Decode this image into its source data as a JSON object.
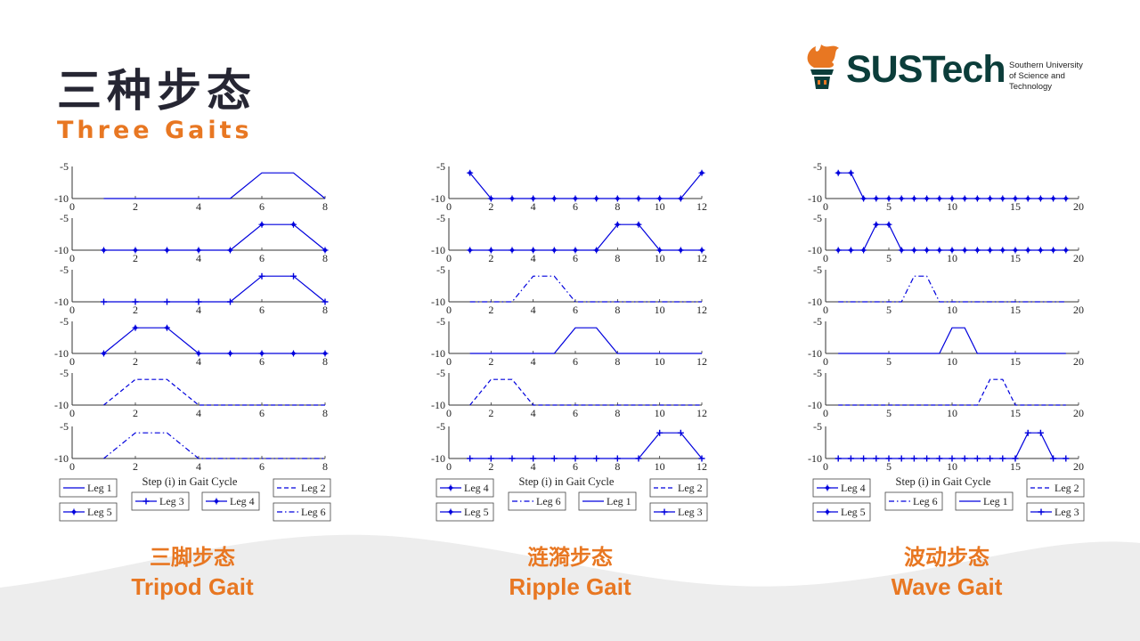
{
  "title_cn": "三种步态",
  "title_en": "Three Gaits",
  "logo": {
    "word": "SUSTech",
    "subtitle": [
      "Southern University",
      "of Science and",
      "Technology"
    ],
    "accent": "#e87722",
    "dark": "#0b3d3a",
    "icon": "torch-logo-icon"
  },
  "colors": {
    "line": "#0000dd",
    "accent": "#e87722",
    "title": "#262633",
    "wave": "#ededed"
  },
  "captions": [
    {
      "cn": "三脚步态",
      "en": "Tripod Gait"
    },
    {
      "cn": "涟漪步态",
      "en": "Ripple Gait"
    },
    {
      "cn": "波动步态",
      "en": "Wave Gait"
    }
  ],
  "chart_data": [
    {
      "type": "line",
      "title": "",
      "xlabel": "Step (i) in Gait Cycle",
      "ylabel": "",
      "xlim": [
        0,
        8
      ],
      "ylim": [
        -10,
        -5
      ],
      "xticks": [
        "0",
        "2",
        "4",
        "6",
        "8"
      ],
      "yticks": [
        "-5",
        "-10"
      ],
      "series": [
        {
          "name": "Leg 1",
          "style": "solid",
          "marker": "none",
          "x": [
            1,
            2,
            3,
            4,
            5,
            6,
            7,
            8
          ],
          "values": [
            -10,
            -10,
            -10,
            -10,
            -10,
            -6,
            -6,
            -10
          ]
        },
        {
          "name": "Leg 4",
          "style": "solid",
          "marker": "dot",
          "x": [
            1,
            2,
            3,
            4,
            5,
            6,
            7,
            8
          ],
          "values": [
            -10,
            -10,
            -10,
            -10,
            -10,
            -6,
            -6,
            -10
          ]
        },
        {
          "name": "Leg 3",
          "style": "solid",
          "marker": "plus",
          "x": [
            1,
            2,
            3,
            4,
            5,
            6,
            7,
            8
          ],
          "values": [
            -10,
            -10,
            -10,
            -10,
            -10,
            -6,
            -6,
            -10
          ]
        },
        {
          "name": "Leg 5",
          "style": "solid",
          "marker": "dot",
          "x": [
            1,
            2,
            3,
            4,
            5,
            6,
            7,
            8
          ],
          "values": [
            -10,
            -6,
            -6,
            -10,
            -10,
            -10,
            -10,
            -10
          ]
        },
        {
          "name": "Leg 2",
          "style": "dash",
          "marker": "none",
          "x": [
            1,
            2,
            3,
            4,
            5,
            6,
            7,
            8
          ],
          "values": [
            -10,
            -6,
            -6,
            -10,
            -10,
            -10,
            -10,
            -10
          ]
        },
        {
          "name": "Leg 6",
          "style": "dashdot",
          "marker": "none",
          "x": [
            1,
            2,
            3,
            4,
            5,
            6,
            7,
            8
          ],
          "values": [
            -10,
            -6,
            -6,
            -10,
            -10,
            -10,
            -10,
            -10
          ]
        }
      ],
      "legend": [
        [
          "Leg 1",
          "",
          "",
          "Leg 2"
        ],
        [
          "Leg 5",
          "Leg 3",
          "Leg 4",
          "Leg 6"
        ]
      ]
    },
    {
      "type": "line",
      "title": "",
      "xlabel": "Step (i) in Gait Cycle",
      "ylabel": "",
      "xlim": [
        0,
        12
      ],
      "ylim": [
        -10,
        -5
      ],
      "xticks": [
        "0",
        "2",
        "4",
        "6",
        "8",
        "10",
        "12"
      ],
      "yticks": [
        "-5",
        "-10"
      ],
      "series": [
        {
          "name": "Leg 4",
          "style": "solid",
          "marker": "dot",
          "x": [
            1,
            2,
            3,
            4,
            5,
            6,
            7,
            8,
            9,
            10,
            11,
            12
          ],
          "values": [
            -6,
            -10,
            -10,
            -10,
            -10,
            -10,
            -10,
            -10,
            -10,
            -10,
            -10,
            -6
          ]
        },
        {
          "name": "Leg 5",
          "style": "solid",
          "marker": "dot",
          "x": [
            1,
            2,
            3,
            4,
            5,
            6,
            7,
            8,
            9,
            10,
            11,
            12
          ],
          "values": [
            -10,
            -10,
            -10,
            -10,
            -10,
            -10,
            -10,
            -6,
            -6,
            -10,
            -10,
            -10
          ]
        },
        {
          "name": "Leg 6",
          "style": "dashdot",
          "marker": "none",
          "x": [
            1,
            2,
            3,
            4,
            5,
            6,
            7,
            8,
            9,
            10,
            11,
            12
          ],
          "values": [
            -10,
            -10,
            -10,
            -6,
            -6,
            -10,
            -10,
            -10,
            -10,
            -10,
            -10,
            -10
          ]
        },
        {
          "name": "Leg 1",
          "style": "solid",
          "marker": "none",
          "x": [
            1,
            2,
            3,
            4,
            5,
            6,
            7,
            8,
            9,
            10,
            11,
            12
          ],
          "values": [
            -10,
            -10,
            -10,
            -10,
            -10,
            -6,
            -6,
            -10,
            -10,
            -10,
            -10,
            -10
          ]
        },
        {
          "name": "Leg 2",
          "style": "dash",
          "marker": "none",
          "x": [
            1,
            2,
            3,
            4,
            5,
            6,
            7,
            8,
            9,
            10,
            11,
            12
          ],
          "values": [
            -10,
            -6,
            -6,
            -10,
            -10,
            -10,
            -10,
            -10,
            -10,
            -10,
            -10,
            -10
          ]
        },
        {
          "name": "Leg 3",
          "style": "solid",
          "marker": "plus",
          "x": [
            1,
            2,
            3,
            4,
            5,
            6,
            7,
            8,
            9,
            10,
            11,
            12
          ],
          "values": [
            -10,
            -10,
            -10,
            -10,
            -10,
            -10,
            -10,
            -10,
            -10,
            -6,
            -6,
            -10
          ]
        }
      ],
      "legend": [
        [
          "Leg 4",
          "",
          "",
          "Leg 2"
        ],
        [
          "Leg 5",
          "Leg 6",
          "Leg 1",
          "Leg 3"
        ]
      ]
    },
    {
      "type": "line",
      "title": "",
      "xlabel": "Step (i) in Gait Cycle",
      "ylabel": "",
      "xlim": [
        0,
        20
      ],
      "ylim": [
        -10,
        -5
      ],
      "xticks": [
        "0",
        "5",
        "10",
        "15",
        "20"
      ],
      "yticks": [
        "-5",
        "-10"
      ],
      "series": [
        {
          "name": "Leg 4",
          "style": "solid",
          "marker": "dot",
          "x": [
            1,
            2,
            3,
            4,
            5,
            6,
            7,
            8,
            9,
            10,
            11,
            12,
            13,
            14,
            15,
            16,
            17,
            18,
            19
          ],
          "values": [
            -6,
            -6,
            -10,
            -10,
            -10,
            -10,
            -10,
            -10,
            -10,
            -10,
            -10,
            -10,
            -10,
            -10,
            -10,
            -10,
            -10,
            -10,
            -10
          ]
        },
        {
          "name": "Leg 5",
          "style": "solid",
          "marker": "dot",
          "x": [
            1,
            2,
            3,
            4,
            5,
            6,
            7,
            8,
            9,
            10,
            11,
            12,
            13,
            14,
            15,
            16,
            17,
            18,
            19
          ],
          "values": [
            -10,
            -10,
            -10,
            -6,
            -6,
            -10,
            -10,
            -10,
            -10,
            -10,
            -10,
            -10,
            -10,
            -10,
            -10,
            -10,
            -10,
            -10,
            -10
          ]
        },
        {
          "name": "Leg 6",
          "style": "dashdot",
          "marker": "none",
          "x": [
            1,
            2,
            3,
            4,
            5,
            6,
            7,
            8,
            9,
            10,
            11,
            12,
            13,
            14,
            15,
            16,
            17,
            18,
            19
          ],
          "values": [
            -10,
            -10,
            -10,
            -10,
            -10,
            -10,
            -6,
            -6,
            -10,
            -10,
            -10,
            -10,
            -10,
            -10,
            -10,
            -10,
            -10,
            -10,
            -10
          ]
        },
        {
          "name": "Leg 1",
          "style": "solid",
          "marker": "none",
          "x": [
            1,
            2,
            3,
            4,
            5,
            6,
            7,
            8,
            9,
            10,
            11,
            12,
            13,
            14,
            15,
            16,
            17,
            18,
            19
          ],
          "values": [
            -10,
            -10,
            -10,
            -10,
            -10,
            -10,
            -10,
            -10,
            -10,
            -6,
            -6,
            -10,
            -10,
            -10,
            -10,
            -10,
            -10,
            -10,
            -10
          ]
        },
        {
          "name": "Leg 2",
          "style": "dash",
          "marker": "none",
          "x": [
            1,
            2,
            3,
            4,
            5,
            6,
            7,
            8,
            9,
            10,
            11,
            12,
            13,
            14,
            15,
            16,
            17,
            18,
            19
          ],
          "values": [
            -10,
            -10,
            -10,
            -10,
            -10,
            -10,
            -10,
            -10,
            -10,
            -10,
            -10,
            -10,
            -6,
            -6,
            -10,
            -10,
            -10,
            -10,
            -10
          ]
        },
        {
          "name": "Leg 3",
          "style": "solid",
          "marker": "plus",
          "x": [
            1,
            2,
            3,
            4,
            5,
            6,
            7,
            8,
            9,
            10,
            11,
            12,
            13,
            14,
            15,
            16,
            17,
            18,
            19
          ],
          "values": [
            -10,
            -10,
            -10,
            -10,
            -10,
            -10,
            -10,
            -10,
            -10,
            -10,
            -10,
            -10,
            -10,
            -10,
            -10,
            -6,
            -6,
            -10,
            -10
          ]
        }
      ],
      "legend": [
        [
          "Leg 4",
          "",
          "",
          "Leg 2"
        ],
        [
          "Leg 5",
          "Leg 6",
          "Leg 1",
          "Leg 3"
        ]
      ]
    }
  ]
}
